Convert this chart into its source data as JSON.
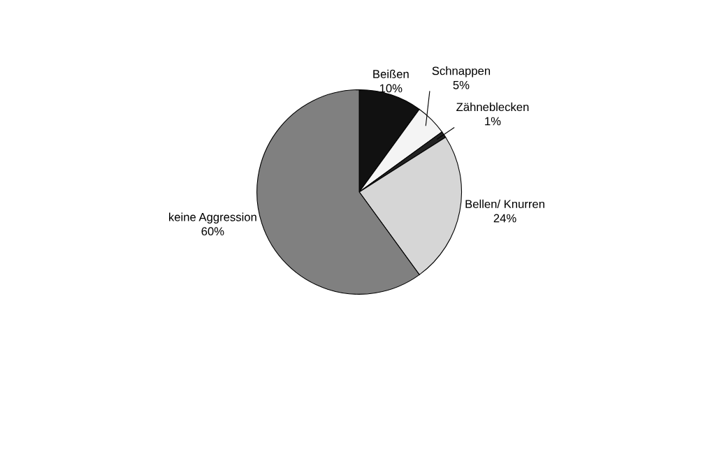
{
  "chart_data": {
    "type": "pie",
    "categories": [
      "Beißen",
      "Schnappen",
      "Zähneblecken",
      "Bellen/ Knurren",
      "keine Aggression"
    ],
    "values": [
      10,
      5,
      1,
      24,
      60
    ],
    "value_labels": [
      "10%",
      "5%",
      "1%",
      "24%",
      "60%"
    ],
    "colors": [
      "#111111",
      "#f4f4f4",
      "#222222",
      "#d6d6d6",
      "#808080"
    ]
  }
}
